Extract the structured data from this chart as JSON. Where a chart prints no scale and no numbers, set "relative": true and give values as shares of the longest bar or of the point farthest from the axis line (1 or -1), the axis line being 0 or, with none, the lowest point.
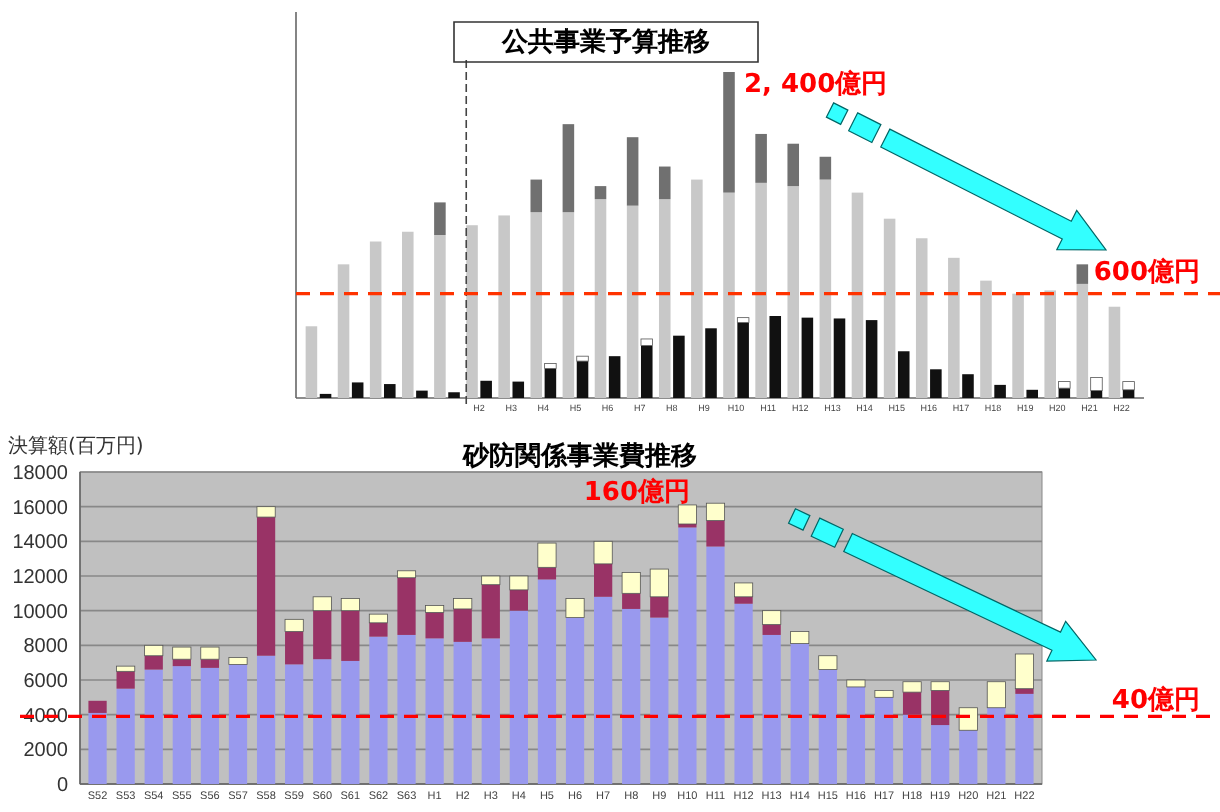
{
  "chart_data": [
    {
      "type": "bar",
      "title": "公共事業予算推移",
      "relative": true,
      "stacked": true,
      "categories": [
        null,
        null,
        null,
        null,
        null,
        "H2",
        "H3",
        "H4",
        "H5",
        "H6",
        "H7",
        "H8",
        "H9",
        "H10",
        "H11",
        "H12",
        "H13",
        "H14",
        "H15",
        "H16",
        "H17",
        "H18",
        "H19",
        "H20",
        "H21",
        "H22"
      ],
      "series": [
        {
          "color": "#c8c8c8",
          "values": [
            0.22,
            0.41,
            0.48,
            0.51,
            0.5,
            0.53,
            0.56,
            0.57,
            0.57,
            0.61,
            0.59,
            0.61,
            0.67,
            0.63,
            0.66,
            0.65,
            0.67,
            0.63,
            0.55,
            0.49,
            0.43,
            0.36,
            0.32,
            0.33,
            0.35,
            0.28
          ]
        },
        {
          "color": "#707070",
          "values": [
            0,
            0,
            0,
            0,
            0.1,
            0,
            0,
            0.1,
            0.27,
            0.04,
            0.21,
            0.1,
            0,
            0.37,
            0.15,
            0.13,
            0.07,
            0,
            0,
            0,
            0,
            0,
            0,
            0,
            0.06,
            0
          ]
        }
      ],
      "ref_lines": [
        {
          "axis": "y",
          "value": 0.32,
          "label": "600億円",
          "color": "#ff3300",
          "line_style": "dashed"
        }
      ],
      "annotations": [
        "2, 400億円"
      ]
    },
    {
      "type": "bar",
      "relative": true,
      "stacked": true,
      "categories": [
        null,
        null,
        null,
        null,
        null,
        null,
        null,
        null,
        null,
        null,
        null,
        null,
        null,
        null,
        null,
        null,
        null,
        null,
        null,
        null,
        null,
        null,
        null,
        null,
        null,
        null
      ],
      "series": [
        {
          "color": "#111111",
          "values": [
            0.05,
            0.19,
            0.17,
            0.09,
            0.07,
            0.21,
            0.2,
            0.36,
            0.45,
            0.51,
            0.64,
            0.76,
            0.85,
            0.92,
            1,
            0.98,
            0.97,
            0.95,
            0.57,
            0.35,
            0.29,
            0.16,
            0.1,
            0.12,
            0.09,
            0.1
          ]
        },
        {
          "color": "#ffffff",
          "values": [
            0,
            0,
            0,
            0,
            0,
            0,
            0,
            0.06,
            0.06,
            0,
            0.08,
            0,
            0,
            0.06,
            0,
            0,
            0,
            0,
            0,
            0,
            0,
            0,
            0,
            0.08,
            0.16,
            0.1
          ]
        }
      ]
    },
    {
      "type": "bar",
      "title": "砂防関係事業費推移",
      "ylabel": "決算額(百万円)",
      "stacked": true,
      "grid": "y",
      "categories": [
        "S52",
        "S53",
        "S54",
        "S55",
        "S56",
        "S57",
        "S58",
        "S59",
        "S60",
        "S61",
        "S62",
        "S63",
        "H1",
        "H2",
        "H3",
        "H4",
        "H5",
        "H6",
        "H7",
        "H8",
        "H9",
        "H10",
        "H11",
        "H12",
        "H13",
        "H14",
        "H15",
        "H16",
        "H17",
        "H18",
        "H19",
        "H20",
        "H21",
        "H22"
      ],
      "ylim": [
        0,
        18000
      ],
      "yticks": [
        0,
        2000,
        4000,
        6000,
        8000,
        10000,
        12000,
        14000,
        16000,
        18000
      ],
      "series": [
        {
          "color": "#9999ee",
          "values": [
            4100,
            5500,
            6600,
            6800,
            6700,
            6900,
            7400,
            6900,
            7200,
            7100,
            8500,
            8600,
            8400,
            8200,
            8400,
            10000,
            11800,
            9600,
            10800,
            10100,
            9600,
            14800,
            13700,
            10400,
            8600,
            8100,
            6600,
            5600,
            5000,
            4000,
            3400,
            3100,
            4400,
            5200
          ]
        },
        {
          "color": "#993366",
          "values": [
            700,
            1000,
            800,
            400,
            500,
            0,
            8000,
            1900,
            2800,
            2900,
            800,
            3300,
            1500,
            1900,
            3100,
            1200,
            700,
            0,
            1900,
            900,
            1200,
            200,
            1500,
            400,
            600,
            0,
            0,
            0,
            0,
            1300,
            2000,
            0,
            0,
            300
          ]
        },
        {
          "color": "#ffffcc",
          "values": [
            0,
            300,
            600,
            700,
            700,
            400,
            600,
            700,
            800,
            700,
            500,
            400,
            400,
            600,
            500,
            800,
            1400,
            1100,
            1300,
            1200,
            1600,
            1100,
            1000,
            800,
            800,
            700,
            800,
            400,
            400,
            600,
            500,
            1300,
            1500,
            2000
          ]
        }
      ],
      "ref_lines": [
        {
          "axis": "y",
          "value": 3900,
          "label": "40億円",
          "color": "#ff0000",
          "line_style": "dashed"
        }
      ],
      "annotations": [
        "160億円"
      ]
    }
  ]
}
